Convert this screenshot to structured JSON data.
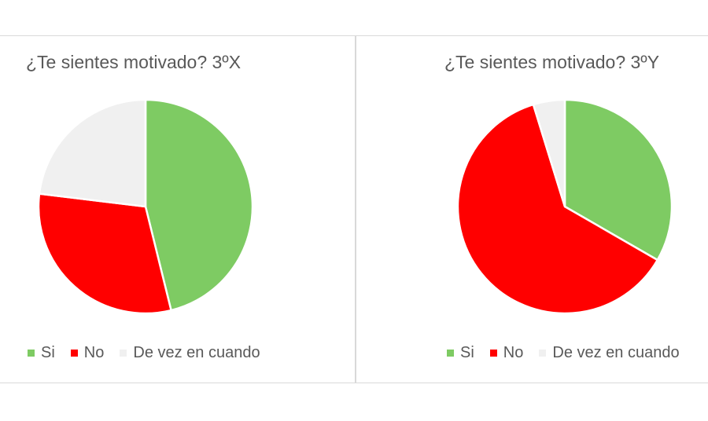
{
  "chart_data": [
    {
      "type": "pie",
      "title": "¿Te sientes motivado? 3ºX",
      "categories": [
        "Si",
        "No",
        "De vez en cuando"
      ],
      "values": [
        12,
        8,
        6
      ],
      "colors": [
        "#7ecb63",
        "#ff0000",
        "#f0f0f0"
      ],
      "legend": "bottom"
    },
    {
      "type": "pie",
      "title": "¿Te sientes motivado? 3ºY",
      "categories": [
        "Si",
        "No",
        "De vez en cuando"
      ],
      "values": [
        7,
        13,
        1
      ],
      "colors": [
        "#7ecb63",
        "#ff0000",
        "#f0f0f0"
      ],
      "legend": "bottom"
    }
  ]
}
